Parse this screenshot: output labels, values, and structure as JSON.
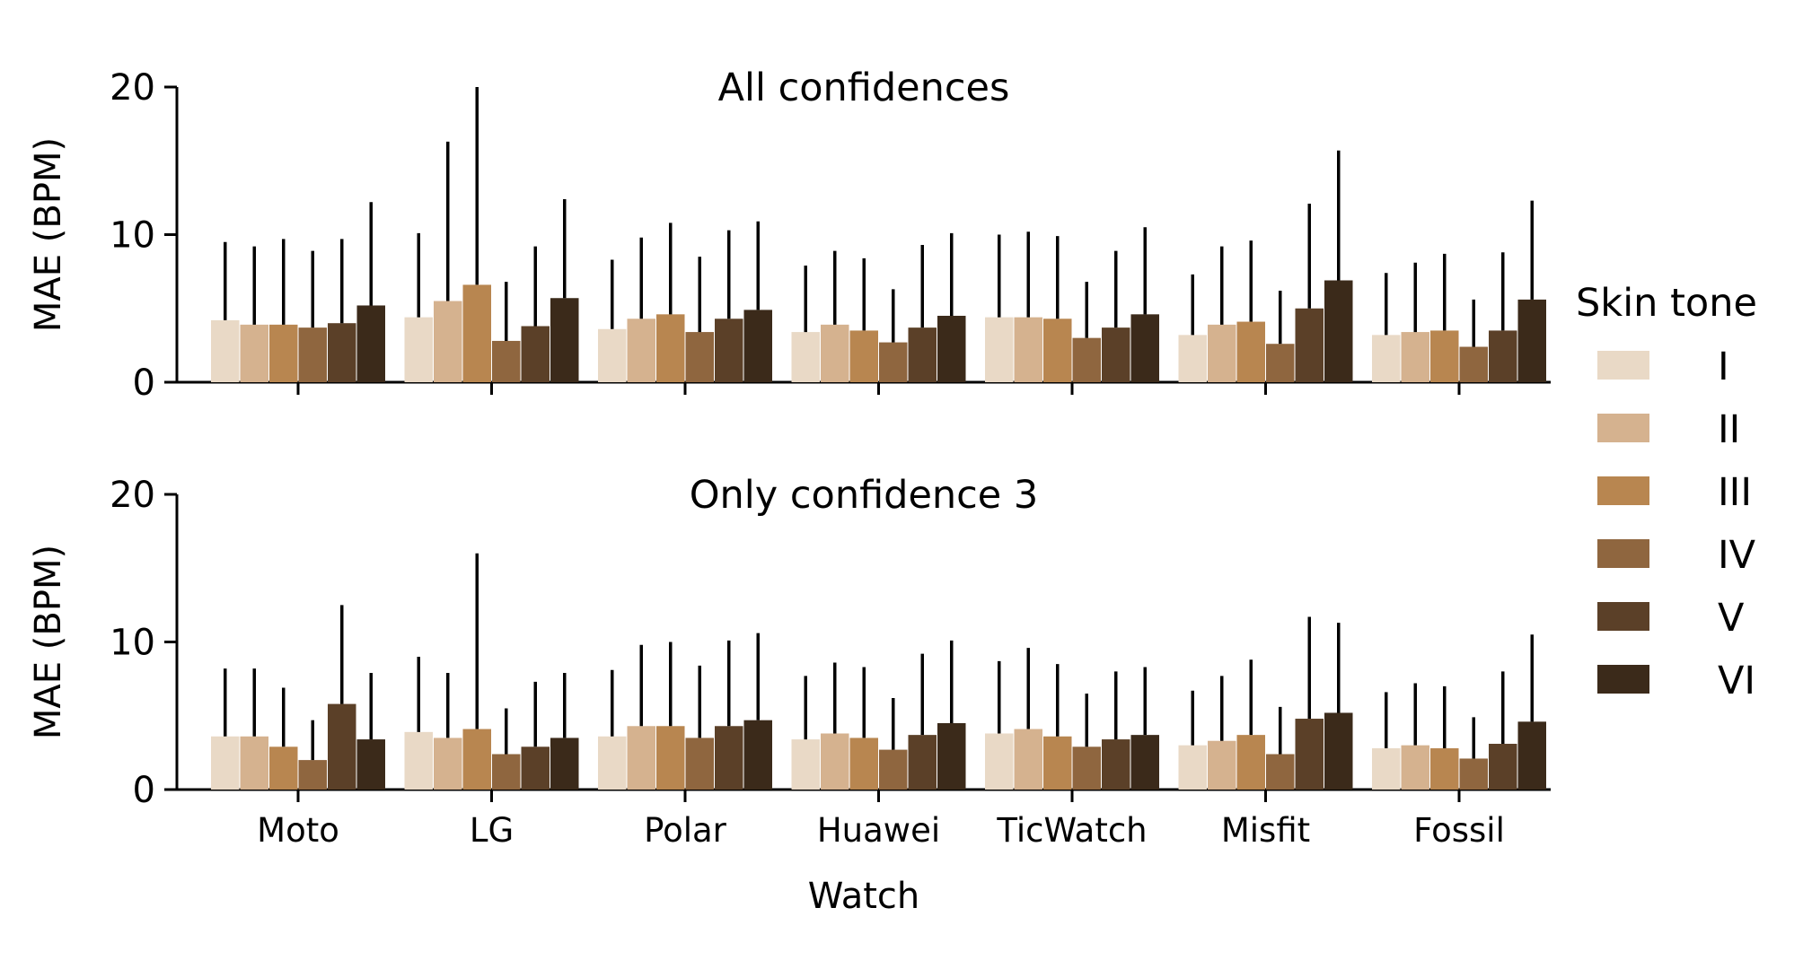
{
  "chart_data": [
    {
      "type": "bar",
      "title": "All confidences",
      "xlabel": "",
      "ylabel": "MAE (BPM)",
      "ylim": [
        0,
        20
      ],
      "yticks": [
        0,
        10,
        20
      ],
      "categories": [
        "Moto",
        "LG",
        "Polar",
        "Huawei",
        "TicWatch",
        "Misfit",
        "Fossil"
      ],
      "series": [
        {
          "name": "I",
          "color": "#e9d9c6",
          "values": [
            4.2,
            4.4,
            3.6,
            3.4,
            4.4,
            3.2,
            3.2
          ],
          "errors": [
            5.3,
            5.7,
            4.7,
            4.5,
            5.6,
            4.1,
            4.2
          ]
        },
        {
          "name": "II",
          "color": "#d5b28f",
          "values": [
            3.9,
            5.5,
            4.3,
            3.9,
            4.4,
            3.9,
            3.4
          ],
          "errors": [
            5.3,
            10.8,
            5.5,
            5.0,
            5.8,
            5.3,
            4.7
          ]
        },
        {
          "name": "III",
          "color": "#b88650",
          "values": [
            3.9,
            6.6,
            4.6,
            3.5,
            4.3,
            4.1,
            3.5
          ],
          "errors": [
            5.8,
            13.4,
            6.2,
            4.9,
            5.6,
            5.5,
            5.2
          ]
        },
        {
          "name": "IV",
          "color": "#8f663f",
          "values": [
            3.7,
            2.8,
            3.4,
            2.7,
            3.0,
            2.6,
            2.4
          ],
          "errors": [
            5.2,
            4.0,
            5.1,
            3.6,
            3.8,
            3.6,
            3.2
          ]
        },
        {
          "name": "V",
          "color": "#5b4028",
          "values": [
            4.0,
            3.8,
            4.3,
            3.7,
            3.7,
            5.0,
            3.5
          ],
          "errors": [
            5.7,
            5.4,
            6.0,
            5.6,
            5.2,
            7.1,
            5.3
          ]
        },
        {
          "name": "VI",
          "color": "#3b2a1a",
          "values": [
            5.2,
            5.7,
            4.9,
            4.5,
            4.6,
            6.9,
            5.6
          ],
          "errors": [
            7.0,
            6.7,
            6.0,
            5.6,
            5.9,
            8.8,
            6.7
          ]
        }
      ]
    },
    {
      "type": "bar",
      "title": "Only confidence 3",
      "xlabel": "Watch",
      "ylabel": "MAE (BPM)",
      "ylim": [
        0,
        20
      ],
      "yticks": [
        0,
        10,
        20
      ],
      "categories": [
        "Moto",
        "LG",
        "Polar",
        "Huawei",
        "TicWatch",
        "Misfit",
        "Fossil"
      ],
      "series": [
        {
          "name": "I",
          "color": "#e9d9c6",
          "values": [
            3.6,
            3.9,
            3.6,
            3.4,
            3.8,
            3.0,
            2.8
          ],
          "errors": [
            4.6,
            5.1,
            4.5,
            4.3,
            4.9,
            3.7,
            3.8
          ]
        },
        {
          "name": "II",
          "color": "#d5b28f",
          "values": [
            3.6,
            3.5,
            4.3,
            3.8,
            4.1,
            3.3,
            3.0
          ],
          "errors": [
            4.6,
            4.4,
            5.5,
            4.8,
            5.5,
            4.4,
            4.2
          ]
        },
        {
          "name": "III",
          "color": "#b88650",
          "values": [
            2.9,
            4.1,
            4.3,
            3.5,
            3.6,
            3.7,
            2.8
          ],
          "errors": [
            4.0,
            11.9,
            5.7,
            4.8,
            4.9,
            5.1,
            4.2
          ]
        },
        {
          "name": "IV",
          "color": "#8f663f",
          "values": [
            2.0,
            2.4,
            3.5,
            2.7,
            2.9,
            2.4,
            2.1
          ],
          "errors": [
            2.7,
            3.1,
            4.9,
            3.5,
            3.6,
            3.2,
            2.8
          ]
        },
        {
          "name": "V",
          "color": "#5b4028",
          "values": [
            5.8,
            2.9,
            4.3,
            3.7,
            3.4,
            4.8,
            3.1
          ],
          "errors": [
            6.7,
            4.4,
            5.8,
            5.5,
            4.6,
            6.9,
            4.9
          ]
        },
        {
          "name": "VI",
          "color": "#3b2a1a",
          "values": [
            3.4,
            3.5,
            4.7,
            4.5,
            3.7,
            5.2,
            4.6
          ],
          "errors": [
            4.5,
            4.4,
            5.9,
            5.6,
            4.6,
            6.1,
            5.9
          ]
        }
      ]
    }
  ],
  "legend": {
    "title": "Skin tone",
    "position": "right",
    "items": [
      "I",
      "II",
      "III",
      "IV",
      "V",
      "VI"
    ]
  }
}
